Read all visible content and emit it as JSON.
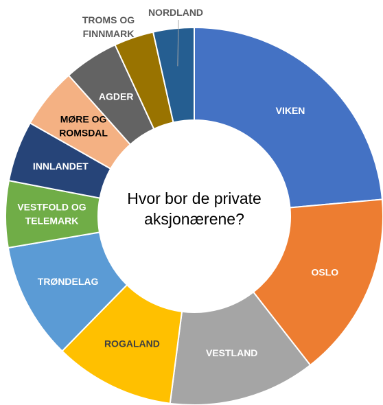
{
  "chart_data": {
    "type": "donut",
    "title": "Hvor bor de private aksjonærene?",
    "categories": [
      "VIKEN",
      "OSLO",
      "VESTLAND",
      "ROGALAND",
      "TRØNDELAG",
      "VESTFOLD OG TELEMARK",
      "INNLANDET",
      "MØRE OG ROMSDAL",
      "AGDER",
      "TROMS OG FINNMARK",
      "NORDLAND"
    ],
    "values": [
      23.6,
      15.9,
      12.6,
      10.3,
      10.0,
      5.7,
      5.2,
      5.2,
      4.7,
      3.4,
      3.5
    ],
    "colors": [
      "#4472c4",
      "#ed7d31",
      "#a5a5a5",
      "#ffc000",
      "#5b9bd5",
      "#70ad47",
      "#264478",
      "#f4b183",
      "#636363",
      "#997300",
      "#255e91"
    ],
    "label_colors": [
      "#ffffff",
      "#ffffff",
      "#ffffff",
      "#404040",
      "#ffffff",
      "#ffffff",
      "#ffffff",
      "#000000",
      "#ffffff",
      "#595959",
      "#595959"
    ]
  }
}
